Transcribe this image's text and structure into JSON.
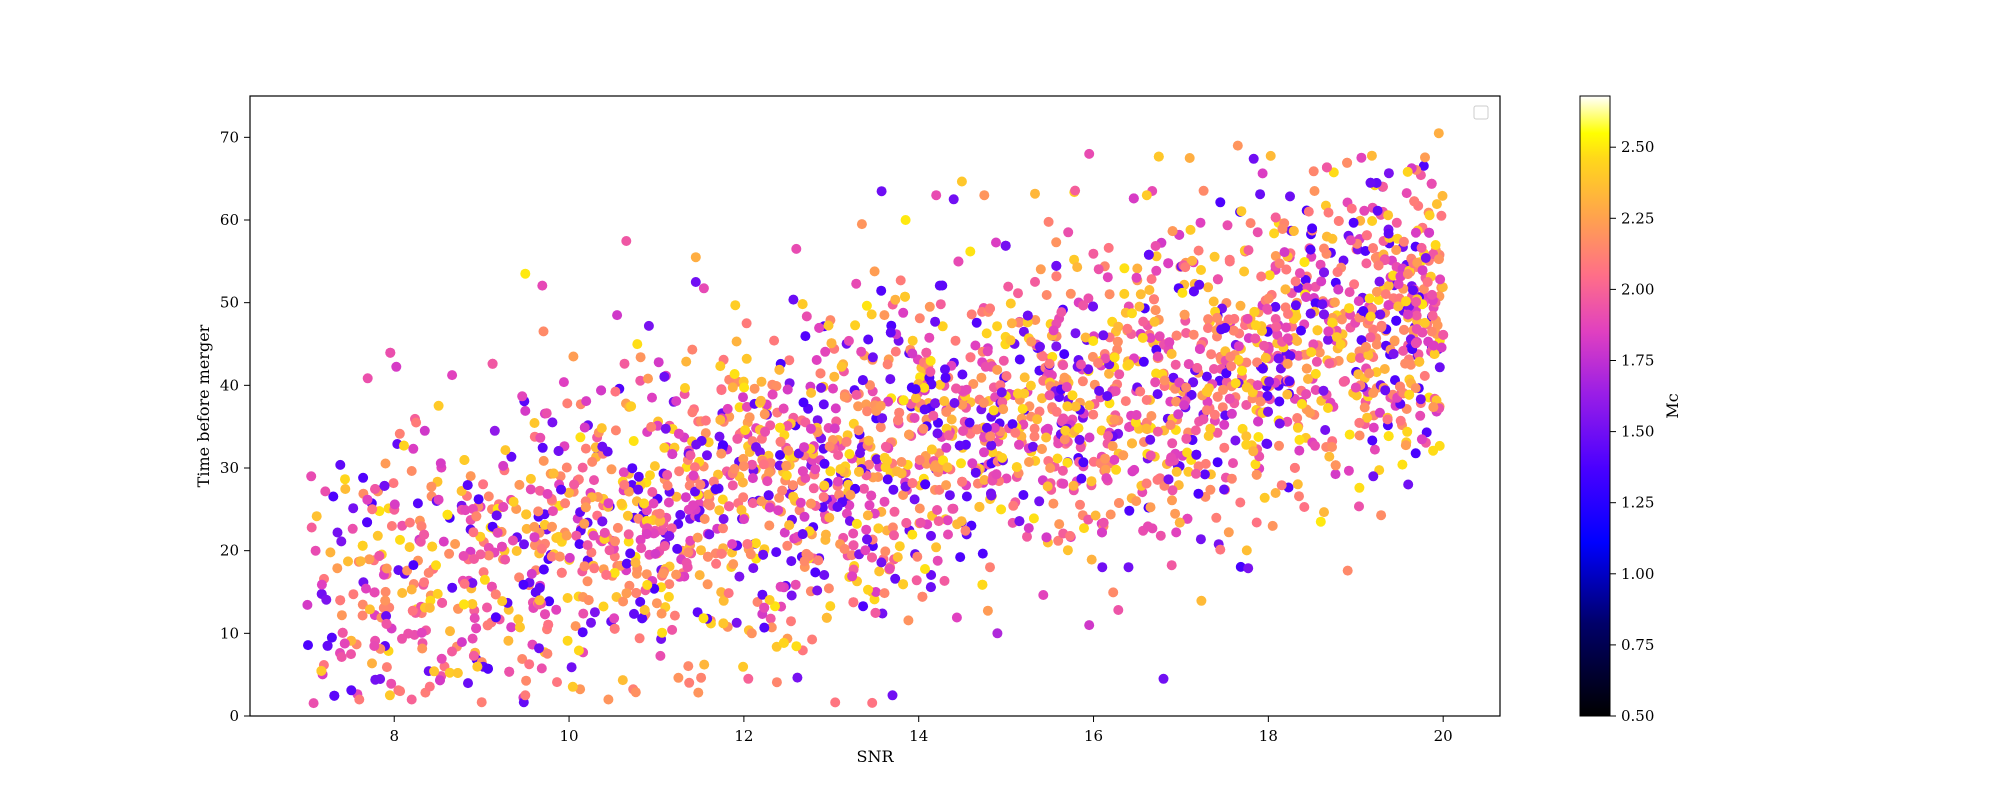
{
  "chart_data": {
    "type": "scatter",
    "xlabel": "SNR",
    "ylabel": "Time before merger",
    "xlim": [
      6.35,
      20.65
    ],
    "ylim": [
      0,
      75
    ],
    "x_ticks": [
      8,
      10,
      12,
      14,
      16,
      18,
      20
    ],
    "y_ticks": [
      0,
      10,
      20,
      30,
      40,
      50,
      60,
      70
    ],
    "grid": false,
    "legend": {
      "placement": "top-right",
      "entries": []
    },
    "colorbar": {
      "label": "Mc",
      "colormap": "gnuplot2",
      "range": [
        0.5,
        2.68
      ],
      "ticks": [
        0.5,
        0.75,
        1.0,
        1.25,
        1.5,
        1.75,
        2.0,
        2.25,
        2.5
      ]
    },
    "point_count_estimate": 3000,
    "points": [
      {
        "x": 7.05,
        "y": 29,
        "c": 1.9
      },
      {
        "x": 7.1,
        "y": 20,
        "c": 1.9
      },
      {
        "x": 8.25,
        "y": 35.5,
        "c": 2.1
      },
      {
        "x": 8.35,
        "y": 34.5,
        "c": 1.8
      },
      {
        "x": 9.15,
        "y": 34.5,
        "c": 1.6
      },
      {
        "x": 9.5,
        "y": 53.5,
        "c": 2.5
      },
      {
        "x": 10.55,
        "y": 48.5,
        "c": 1.8
      },
      {
        "x": 11.45,
        "y": 55.5,
        "c": 2.3
      },
      {
        "x": 11.45,
        "y": 52.5,
        "c": 1.5
      },
      {
        "x": 12.6,
        "y": 56.5,
        "c": 1.9
      },
      {
        "x": 13.35,
        "y": 59.5,
        "c": 2.2
      },
      {
        "x": 13.85,
        "y": 60,
        "c": 2.5
      },
      {
        "x": 14.2,
        "y": 63,
        "c": 1.9
      },
      {
        "x": 14.4,
        "y": 62.5,
        "c": 1.5
      },
      {
        "x": 14.75,
        "y": 63,
        "c": 2.2
      },
      {
        "x": 15.95,
        "y": 68,
        "c": 1.9
      },
      {
        "x": 17.1,
        "y": 67.5,
        "c": 2.3
      },
      {
        "x": 17.65,
        "y": 69,
        "c": 2.2
      },
      {
        "x": 19.95,
        "y": 70.5,
        "c": 2.3
      },
      {
        "x": 13.7,
        "y": 2.5,
        "c": 1.5
      },
      {
        "x": 16.8,
        "y": 4.5,
        "c": 1.5
      },
      {
        "x": 15.95,
        "y": 11,
        "c": 1.8
      },
      {
        "x": 14.9,
        "y": 10,
        "c": 1.7
      },
      {
        "x": 16.1,
        "y": 18,
        "c": 1.5
      },
      {
        "x": 16.4,
        "y": 18,
        "c": 1.5
      },
      {
        "x": 18.05,
        "y": 23,
        "c": 2.2
      },
      {
        "x": 18.6,
        "y": 23.5,
        "c": 2.5
      },
      {
        "x": 19.2,
        "y": 29,
        "c": 1.5
      },
      {
        "x": 19.6,
        "y": 28,
        "c": 1.5
      },
      {
        "x": 7.6,
        "y": 2,
        "c": 2.1
      },
      {
        "x": 7.95,
        "y": 2.5,
        "c": 2.4
      },
      {
        "x": 8.2,
        "y": 2,
        "c": 2.0
      },
      {
        "x": 9.5,
        "y": 2.5,
        "c": 2.1
      },
      {
        "x": 10.45,
        "y": 2,
        "c": 2.2
      },
      {
        "x": 12.05,
        "y": 4.5,
        "c": 2.0
      }
    ],
    "cloud": {
      "x_range": [
        7,
        20
      ],
      "trend": {
        "intercept_at_x7": 13,
        "slope_per_snr": 2.85
      },
      "spread_sd": 9.5,
      "color_mix": [
        {
          "c": 2.4,
          "weight": 0.22
        },
        {
          "c": 2.15,
          "weight": 0.3
        },
        {
          "c": 1.9,
          "weight": 0.3
        },
        {
          "c": 1.45,
          "weight": 0.18
        }
      ]
    }
  }
}
